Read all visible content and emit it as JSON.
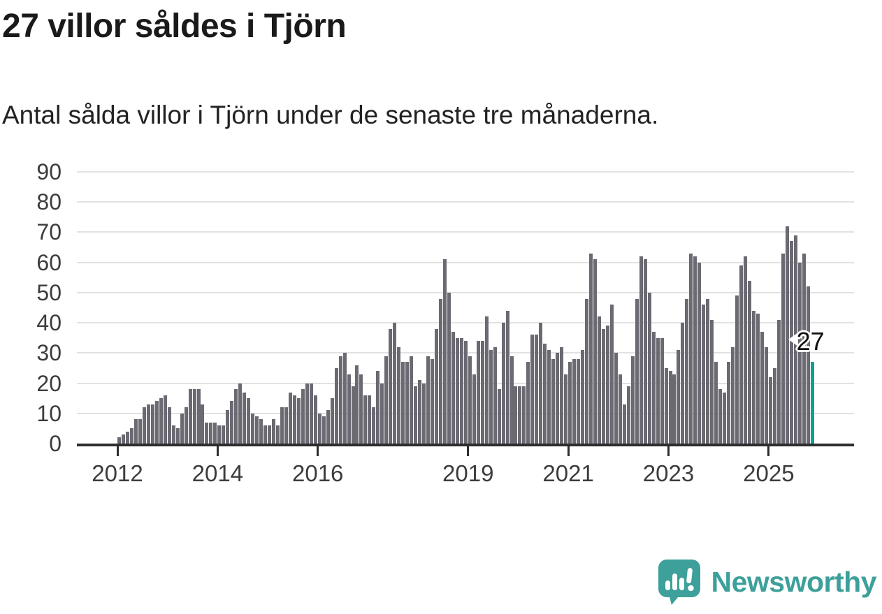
{
  "header": {
    "title": "27 villor såldes i Tjörn",
    "subtitle": "Antal sålda villor i Tjörn under de senaste tre månaderna."
  },
  "branding": {
    "name": "Newsworthy",
    "logo_icon": "bar-chart-speech-bubble"
  },
  "colors": {
    "bar": "#6b6a72",
    "highlight": "#0f9f96",
    "brand": "#3da09a",
    "grid": "#e2e2e2",
    "axis_line": "#2e2e2e",
    "axis_text": "#3c3c3c"
  },
  "chart_data": {
    "type": "bar",
    "title": "27 villor såldes i Tjörn",
    "subtitle": "Antal sålda villor i Tjörn under de senaste tre månaderna.",
    "xlabel": "",
    "ylabel": "",
    "x_start": "2012-01",
    "x_end": "2025-11",
    "x_frequency": "monthly",
    "ylim": [
      0,
      90
    ],
    "y_ticks": [
      0,
      10,
      20,
      30,
      40,
      50,
      60,
      70,
      80,
      90
    ],
    "grid": "horizontal",
    "legend": "none",
    "x_ticks": [
      {
        "label": "2012",
        "month_index": 0
      },
      {
        "label": "2014",
        "month_index": 24
      },
      {
        "label": "2016",
        "month_index": 48
      },
      {
        "label": "2019",
        "month_index": 84
      },
      {
        "label": "2021",
        "month_index": 108
      },
      {
        "label": "2023",
        "month_index": 132
      },
      {
        "label": "2025",
        "month_index": 156
      }
    ],
    "values": [
      2,
      3,
      4,
      5,
      8,
      8,
      12,
      13,
      13,
      14,
      15,
      16,
      12,
      6,
      5,
      10,
      12,
      18,
      18,
      18,
      13,
      7,
      7,
      7,
      6,
      6,
      11,
      14,
      18,
      20,
      17,
      15,
      10,
      9,
      8,
      6,
      6,
      8,
      6,
      12,
      12,
      17,
      16,
      15,
      18,
      20,
      20,
      16,
      10,
      9,
      11,
      15,
      25,
      29,
      30,
      23,
      19,
      26,
      23,
      16,
      16,
      12,
      24,
      20,
      29,
      38,
      40,
      32,
      27,
      27,
      29,
      19,
      21,
      20,
      29,
      28,
      38,
      48,
      61,
      50,
      37,
      35,
      35,
      34,
      29,
      23,
      34,
      34,
      42,
      31,
      32,
      18,
      40,
      44,
      29,
      19,
      19,
      19,
      27,
      36,
      36,
      40,
      33,
      31,
      28,
      30,
      32,
      23,
      27,
      28,
      28,
      31,
      48,
      63,
      61,
      42,
      38,
      39,
      46,
      30,
      23,
      13,
      19,
      29,
      48,
      62,
      61,
      50,
      37,
      35,
      35,
      25,
      24,
      23,
      31,
      40,
      48,
      63,
      62,
      60,
      46,
      48,
      41,
      27,
      18,
      17,
      27,
      32,
      49,
      59,
      62,
      54,
      44,
      43,
      37,
      32,
      22,
      25,
      41,
      63,
      72,
      67,
      69,
      60,
      63,
      52,
      27
    ],
    "highlight": {
      "index": 166,
      "value": 27,
      "label": "27"
    }
  }
}
